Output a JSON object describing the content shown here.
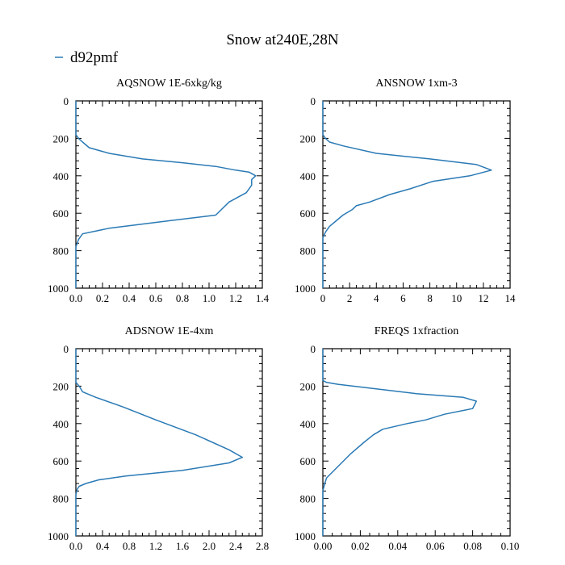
{
  "figure": {
    "title": "Snow at240E,28N",
    "legend": [
      {
        "label": "d92pmf",
        "color": "#2a7ab5"
      }
    ]
  },
  "chart_data": [
    {
      "type": "line",
      "title": "AQSNOW  1E-6xkg/kg",
      "xlabel": "",
      "ylabel": "",
      "xlim": [
        0,
        1.4
      ],
      "ylim": [
        1000,
        0
      ],
      "xticks": [
        "0.0",
        "0.2",
        "0.4",
        "0.6",
        "0.8",
        "1.0",
        "1.2",
        "1.4"
      ],
      "yticks": [
        "0",
        "200",
        "400",
        "600",
        "800",
        "1000"
      ],
      "series": [
        {
          "name": "d92pmf",
          "color": "#2a7ab5",
          "x": [
            0.0,
            0.0,
            0.02,
            0.05,
            0.1,
            0.25,
            0.5,
            0.8,
            1.05,
            1.2,
            1.3,
            1.35,
            1.32,
            1.32,
            1.28,
            1.15,
            1.05,
            0.7,
            0.25,
            0.05,
            0.02,
            0.0,
            0.0
          ],
          "y": [
            0,
            180,
            200,
            220,
            250,
            280,
            310,
            330,
            350,
            370,
            380,
            400,
            420,
            450,
            490,
            540,
            610,
            640,
            680,
            710,
            740,
            780,
            1000
          ]
        }
      ]
    },
    {
      "type": "line",
      "title": "ANSNOW  1xm-3",
      "xlabel": "",
      "ylabel": "",
      "xlim": [
        0,
        14
      ],
      "ylim": [
        1000,
        0
      ],
      "xticks": [
        "0",
        "2",
        "4",
        "6",
        "8",
        "10",
        "12",
        "14"
      ],
      "yticks": [
        "0",
        "200",
        "400",
        "600",
        "800",
        "1000"
      ],
      "series": [
        {
          "name": "d92pmf",
          "color": "#2a7ab5",
          "x": [
            0.0,
            0.0,
            0.2,
            0.5,
            1.5,
            4.0,
            8.0,
            11.5,
            12.6,
            11.0,
            8.2,
            6.5,
            5.0,
            3.5,
            2.5,
            2.2,
            1.5,
            1.0,
            0.5,
            0.2,
            0.0,
            0.0
          ],
          "y": [
            0,
            180,
            200,
            220,
            240,
            280,
            310,
            340,
            370,
            400,
            430,
            470,
            500,
            540,
            560,
            580,
            610,
            640,
            670,
            700,
            730,
            1000
          ]
        }
      ]
    },
    {
      "type": "line",
      "title": "ADSNOW  1E-4xm",
      "xlabel": "",
      "ylabel": "",
      "xlim": [
        0,
        2.8
      ],
      "ylim": [
        1000,
        0
      ],
      "xticks": [
        "0.0",
        "0.4",
        "0.8",
        "1.2",
        "1.6",
        "2.0",
        "2.4",
        "2.8"
      ],
      "yticks": [
        "0",
        "200",
        "400",
        "600",
        "800",
        "1000"
      ],
      "series": [
        {
          "name": "d92pmf",
          "color": "#2a7ab5",
          "x": [
            0.0,
            0.0,
            0.05,
            0.1,
            0.3,
            0.7,
            1.2,
            1.8,
            2.3,
            2.5,
            2.3,
            1.6,
            0.75,
            0.35,
            0.15,
            0.05,
            0.02,
            0.0,
            0.0
          ],
          "y": [
            0,
            180,
            200,
            230,
            260,
            310,
            380,
            460,
            540,
            580,
            610,
            650,
            680,
            700,
            720,
            735,
            750,
            780,
            1000
          ]
        }
      ]
    },
    {
      "type": "line",
      "title": "FREQS  1xfraction",
      "xlabel": "",
      "ylabel": "",
      "xlim": [
        0,
        0.1
      ],
      "ylim": [
        1000,
        0
      ],
      "xticks": [
        "0.00",
        "0.02",
        "0.04",
        "0.06",
        "0.08",
        "0.10"
      ],
      "yticks": [
        "0",
        "200",
        "400",
        "600",
        "800",
        "1000"
      ],
      "series": [
        {
          "name": "d92pmf",
          "color": "#2a7ab5",
          "x": [
            0.0,
            0.0,
            0.002,
            0.008,
            0.05,
            0.075,
            0.082,
            0.08,
            0.065,
            0.055,
            0.045,
            0.032,
            0.027,
            0.022,
            0.015,
            0.01,
            0.005,
            0.002,
            0.001,
            0.0,
            0.0
          ],
          "y": [
            0,
            170,
            180,
            190,
            240,
            260,
            280,
            320,
            350,
            380,
            400,
            430,
            460,
            500,
            560,
            610,
            660,
            690,
            720,
            760,
            1000
          ]
        }
      ]
    }
  ]
}
